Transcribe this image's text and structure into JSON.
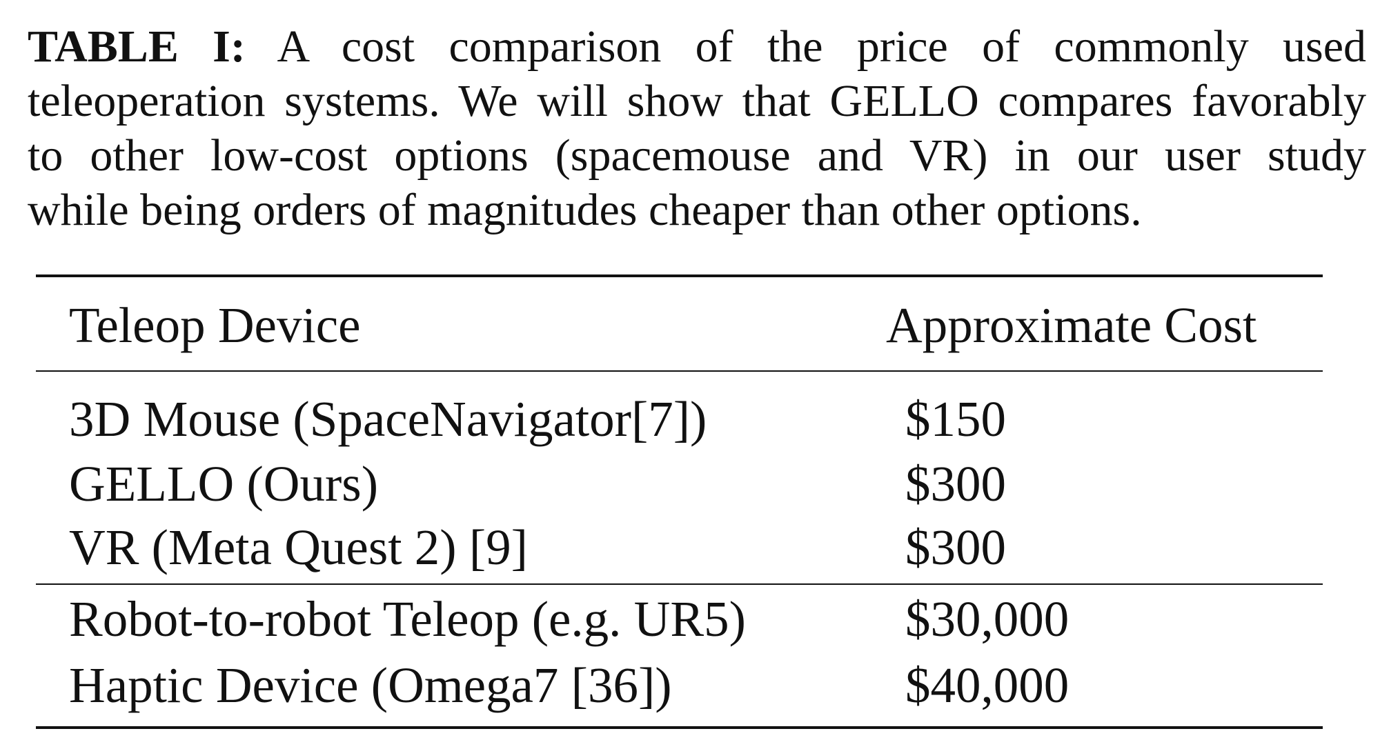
{
  "caption": {
    "label": "TABLE I:",
    "line1": "A cost comparison of the price of commonly used",
    "line2": "teleoperation systems. We will show that GELLO compares favorably",
    "line3": "to other low-cost options (spacemouse and VR) in our user study",
    "line4": "while being orders of magnitudes cheaper than other options."
  },
  "table": {
    "headers": {
      "device": "Teleop Device",
      "cost": "Approximate Cost"
    },
    "rows": [
      {
        "device": "3D Mouse (SpaceNavigator[7])",
        "cost": "$150"
      },
      {
        "device": "GELLO (Ours)",
        "cost": "$300"
      },
      {
        "device": "VR (Meta Quest 2) [9]",
        "cost": "$300"
      },
      {
        "device": "Robot-to-robot Teleop (e.g. UR5)",
        "cost": "$30,000"
      },
      {
        "device": "Haptic Device (Omega7 [36])",
        "cost": "$40,000"
      }
    ]
  }
}
